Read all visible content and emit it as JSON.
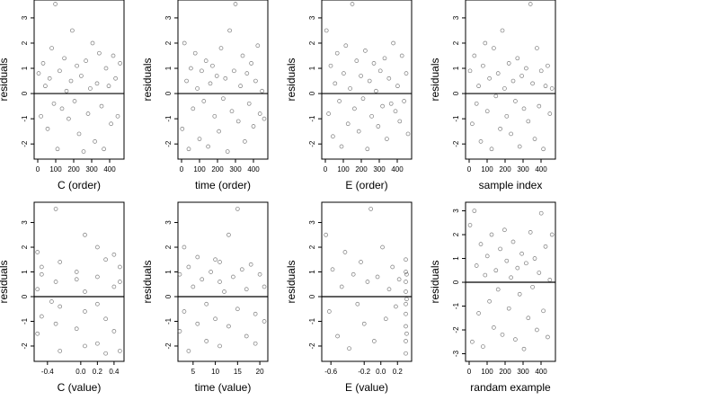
{
  "chart_data": [
    {
      "type": "scatter",
      "xlabel": "C (order)",
      "ylabel": "residuals",
      "color": "#444444",
      "hline": 0,
      "xlim": [
        -20,
        480
      ],
      "ylim": [
        -2.6,
        3.71
      ],
      "xticks": [
        0,
        100,
        200,
        300,
        400
      ],
      "yticks": [
        -2,
        -1,
        0,
        1,
        2,
        3
      ],
      "x": [
        5,
        18,
        30,
        42,
        55,
        66,
        78,
        90,
        98,
        110,
        122,
        135,
        148,
        160,
        172,
        185,
        192,
        205,
        218,
        230,
        242,
        255,
        268,
        280,
        292,
        305,
        318,
        330,
        342,
        355,
        368,
        380,
        395,
        408,
        420,
        433,
        445,
        458
      ],
      "y": [
        0.8,
        -0.9,
        1.2,
        0.3,
        -1.4,
        0.6,
        1.8,
        -0.4,
        3.55,
        -2.2,
        0.9,
        -0.6,
        1.4,
        0.1,
        -1.0,
        0.5,
        2.5,
        -0.3,
        1.1,
        -1.6,
        0.7,
        -2.3,
        1.3,
        -0.8,
        0.2,
        2.0,
        -1.9,
        0.4,
        1.6,
        -0.5,
        -2.2,
        1.0,
        0.3,
        -1.2,
        1.5,
        0.6,
        -0.9,
        1.2
      ]
    },
    {
      "type": "scatter",
      "xlabel": "time (order)",
      "ylabel": "residuals",
      "color": "#444444",
      "hline": 0,
      "xlim": [
        -20,
        480
      ],
      "ylim": [
        -2.6,
        3.71
      ],
      "xticks": [
        0,
        100,
        200,
        300,
        400
      ],
      "yticks": [
        -2,
        -1,
        0,
        1,
        2,
        3
      ],
      "x": [
        4,
        16,
        28,
        40,
        52,
        64,
        76,
        88,
        100,
        112,
        124,
        136,
        148,
        160,
        172,
        184,
        196,
        208,
        220,
        232,
        244,
        256,
        268,
        280,
        292,
        300,
        316,
        328,
        340,
        352,
        364,
        376,
        388,
        400,
        412,
        424,
        436,
        448,
        460
      ],
      "y": [
        -1.4,
        2.0,
        0.5,
        -2.2,
        1.0,
        -0.6,
        1.6,
        0.2,
        -1.8,
        0.9,
        -0.3,
        1.3,
        -2.1,
        0.4,
        1.1,
        -0.9,
        0.7,
        -1.5,
        1.8,
        -0.2,
        0.6,
        -2.3,
        2.5,
        -0.7,
        0.9,
        3.55,
        -1.1,
        0.3,
        1.5,
        -1.9,
        0.8,
        -0.4,
        1.2,
        -1.3,
        0.5,
        1.9,
        -0.8,
        0.1,
        -1.0
      ]
    },
    {
      "type": "scatter",
      "xlabel": "E (order)",
      "ylabel": "residuals",
      "color": "#444444",
      "hline": 0,
      "xlim": [
        -20,
        480
      ],
      "ylim": [
        -2.6,
        3.71
      ],
      "xticks": [
        0,
        100,
        200,
        300,
        400
      ],
      "yticks": [
        -2,
        -1,
        0,
        1,
        2,
        3
      ],
      "x": [
        6,
        18,
        30,
        42,
        54,
        66,
        78,
        90,
        102,
        114,
        126,
        138,
        150,
        162,
        174,
        186,
        198,
        210,
        222,
        234,
        246,
        258,
        270,
        282,
        294,
        306,
        318,
        330,
        342,
        354,
        366,
        378,
        390,
        402,
        414,
        426,
        438,
        450,
        460
      ],
      "y": [
        2.5,
        -0.8,
        1.1,
        -1.7,
        0.4,
        1.6,
        -0.3,
        -2.1,
        0.8,
        1.9,
        -1.2,
        0.2,
        3.55,
        -0.6,
        1.3,
        -1.5,
        0.7,
        -0.2,
        1.7,
        -2.2,
        0.5,
        -0.9,
        1.2,
        0.1,
        -1.3,
        0.9,
        -0.5,
        1.4,
        -1.8,
        0.6,
        -0.4,
        2.0,
        -0.7,
        0.3,
        -1.1,
        1.5,
        -0.3,
        0.8,
        -1.6
      ]
    },
    {
      "type": "scatter",
      "xlabel": "sample index",
      "ylabel": "residuals",
      "color": "#444444",
      "hline": 0,
      "xlim": [
        -20,
        480
      ],
      "ylim": [
        -2.6,
        3.71
      ],
      "xticks": [
        0,
        100,
        200,
        300,
        400
      ],
      "yticks": [
        -2,
        -1,
        0,
        1,
        2,
        3
      ],
      "x": [
        5,
        17,
        29,
        41,
        53,
        65,
        77,
        89,
        101,
        113,
        125,
        137,
        149,
        161,
        173,
        185,
        197,
        209,
        221,
        233,
        245,
        257,
        269,
        281,
        293,
        305,
        317,
        329,
        341,
        353,
        365,
        377,
        389,
        401,
        413,
        425,
        437,
        449,
        461
      ],
      "y": [
        0.9,
        -1.2,
        1.5,
        -0.4,
        0.3,
        -1.9,
        1.1,
        2.0,
        -0.7,
        0.6,
        -2.2,
        1.8,
        -0.1,
        0.8,
        -1.4,
        2.5,
        0.2,
        -0.9,
        1.2,
        -1.6,
        0.5,
        -0.3,
        1.4,
        -2.1,
        0.7,
        -0.6,
        1.0,
        -1.1,
        3.55,
        0.4,
        -1.8,
        1.8,
        -0.5,
        0.9,
        -2.2,
        0.3,
        1.1,
        -0.8,
        0.2
      ]
    },
    {
      "type": "scatter",
      "xlabel": "C (value)",
      "ylabel": "residuals",
      "color": "#444444",
      "hline": 0,
      "xlim": [
        -0.56,
        0.52
      ],
      "ylim": [
        -2.62,
        3.82
      ],
      "xticks": [
        -0.4,
        {
          "value": 0,
          "label": "0.0"
        },
        0.2,
        0.4
      ],
      "yticks": [
        -2,
        -1,
        0,
        1,
        2,
        3
      ],
      "x": [
        -0.52,
        -0.52,
        -0.52,
        -0.47,
        -0.47,
        -0.47,
        -0.3,
        -0.3,
        -0.3,
        -0.25,
        -0.25,
        -0.25,
        -0.05,
        -0.05,
        -0.05,
        0.05,
        0.05,
        0.05,
        0.2,
        0.2,
        0.2,
        0.2,
        0.3,
        0.3,
        0.3,
        0.4,
        0.4,
        0.4,
        0.47,
        0.47,
        0.47,
        -0.35,
        0.05
      ],
      "y": [
        1.8,
        -1.5,
        0.3,
        0.9,
        -0.8,
        1.2,
        -1.1,
        0.6,
        3.55,
        1.4,
        -0.4,
        -2.2,
        0.7,
        -1.3,
        1.0,
        2.5,
        -0.6,
        0.2,
        2.0,
        -1.9,
        0.8,
        -0.3,
        1.5,
        -2.3,
        -0.9,
        1.7,
        -1.4,
        0.4,
        1.2,
        -2.2,
        0.6,
        -0.2,
        -2.0
      ]
    },
    {
      "type": "scatter",
      "xlabel": "time (value)",
      "ylabel": "residuals",
      "color": "#444444",
      "hline": 0,
      "xlim": [
        1.6,
        21.8
      ],
      "ylim": [
        -2.62,
        3.82
      ],
      "xticks": [
        5,
        10,
        15,
        20
      ],
      "yticks": [
        -2,
        -1,
        0,
        1,
        2,
        3
      ],
      "x": [
        2,
        2,
        3,
        3,
        4,
        4,
        5,
        6,
        6,
        7,
        8,
        8,
        9,
        10,
        10,
        11,
        11,
        11,
        12,
        13,
        13,
        14,
        15,
        15,
        16,
        17,
        17,
        18,
        19,
        19,
        20,
        21,
        21
      ],
      "y": [
        0.9,
        -1.4,
        2.0,
        -0.6,
        1.2,
        -2.2,
        0.4,
        1.6,
        -1.1,
        0.7,
        -0.3,
        -1.8,
        1.0,
        1.5,
        -0.9,
        1.4,
        -2.0,
        0.6,
        0.2,
        2.5,
        -1.2,
        0.8,
        3.55,
        -0.5,
        1.1,
        -1.6,
        0.3,
        1.3,
        -0.7,
        -1.9,
        0.9,
        0.4,
        -1.0
      ]
    },
    {
      "type": "scatter",
      "xlabel": "E (value)",
      "ylabel": "residuals",
      "color": "#444444",
      "hline": 0,
      "xlim": [
        -0.71,
        0.37
      ],
      "ylim": [
        -2.62,
        3.82
      ],
      "xticks": [
        -0.6,
        -0.2,
        {
          "value": 0,
          "label": "0.0"
        },
        0.2
      ],
      "yticks": [
        -2,
        -1,
        0,
        1,
        2,
        3
      ],
      "x": [
        -0.66,
        -0.62,
        -0.58,
        -0.52,
        -0.47,
        -0.43,
        -0.38,
        -0.33,
        -0.28,
        -0.24,
        -0.2,
        -0.16,
        -0.12,
        -0.08,
        -0.04,
        0.02,
        0.06,
        0.1,
        0.14,
        0.18,
        0.22,
        0.3,
        0.3,
        0.3,
        0.3,
        0.3,
        0.3,
        0.3,
        0.3,
        0.3,
        0.31,
        0.31,
        0.31
      ],
      "y": [
        2.5,
        -0.6,
        1.1,
        -1.6,
        0.4,
        1.8,
        -2.1,
        0.9,
        -0.3,
        1.4,
        -1.1,
        0.6,
        3.55,
        -1.8,
        0.8,
        2.0,
        -0.9,
        0.3,
        1.2,
        -0.4,
        0.7,
        -2.3,
        -1.8,
        -1.2,
        -0.7,
        -0.3,
        0.2,
        0.6,
        1.0,
        1.5,
        -1.5,
        -0.1,
        0.9
      ]
    },
    {
      "type": "scatter",
      "xlabel": "randam example",
      "ylabel": "residuals",
      "color": "#444444",
      "hline": 0,
      "xlim": [
        -20,
        480
      ],
      "ylim": [
        -3.32,
        3.36
      ],
      "xticks": [
        0,
        100,
        200,
        300,
        400
      ],
      "yticks": [
        -3,
        -2,
        -1,
        0,
        1,
        2,
        3
      ],
      "x": [
        5,
        17,
        29,
        41,
        53,
        65,
        77,
        89,
        101,
        113,
        125,
        137,
        149,
        161,
        173,
        185,
        197,
        209,
        221,
        233,
        245,
        257,
        269,
        281,
        293,
        305,
        317,
        329,
        341,
        353,
        365,
        377,
        389,
        401,
        413,
        425,
        437,
        449,
        461
      ],
      "y": [
        2.4,
        -2.5,
        3.0,
        0.7,
        -1.3,
        1.6,
        -2.7,
        0.3,
        1.1,
        -0.8,
        2.0,
        -1.9,
        0.5,
        -0.3,
        1.4,
        -2.2,
        2.2,
        0.9,
        -1.1,
        0.2,
        1.7,
        -2.4,
        0.6,
        -0.5,
        1.2,
        -2.8,
        0.8,
        -1.5,
        2.1,
        -0.2,
        1.0,
        -2.0,
        0.4,
        2.9,
        -1.2,
        1.5,
        -2.3,
        0.1,
        2.0
      ]
    }
  ]
}
